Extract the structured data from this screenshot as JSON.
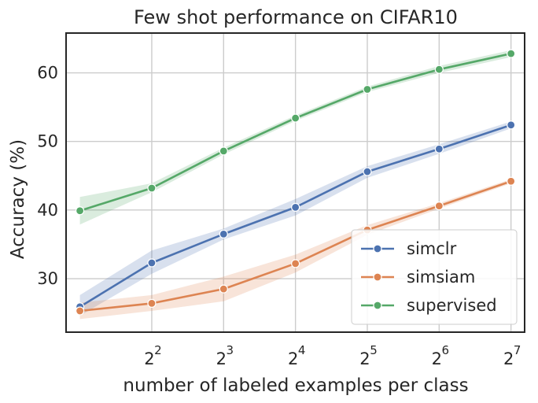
{
  "chart_data": {
    "type": "line",
    "title": "Few shot performance on CIFAR10",
    "xlabel": "number of labeled examples per class",
    "ylabel": "Accuracy (%)",
    "x_scale": "log2",
    "x": [
      2,
      4,
      8,
      16,
      32,
      64,
      128
    ],
    "xticks": [
      4,
      8,
      16,
      32,
      64,
      128
    ],
    "xtick_labels": [
      {
        "base": "2",
        "exp": "2"
      },
      {
        "base": "2",
        "exp": "3"
      },
      {
        "base": "2",
        "exp": "4"
      },
      {
        "base": "2",
        "exp": "5"
      },
      {
        "base": "2",
        "exp": "6"
      },
      {
        "base": "2",
        "exp": "7"
      }
    ],
    "xlim": [
      1.75,
      146
    ],
    "ylim": [
      22.2,
      65.8
    ],
    "yticks": [
      30,
      40,
      50,
      60
    ],
    "ytick_labels": [
      "30",
      "40",
      "50",
      "60"
    ],
    "grid": true,
    "legend_position": "bottom-right",
    "series": [
      {
        "name": "simclr",
        "color": "#4c72b0",
        "values": [
          25.9,
          32.3,
          36.5,
          40.4,
          45.6,
          48.9,
          52.4
        ],
        "lower": [
          24.6,
          30.7,
          35.7,
          39.2,
          44.7,
          48.2,
          51.9
        ],
        "upper": [
          27.6,
          34.1,
          37.3,
          41.6,
          46.4,
          49.6,
          52.9
        ]
      },
      {
        "name": "simsiam",
        "color": "#dd8452",
        "values": [
          25.3,
          26.4,
          28.5,
          32.2,
          37.1,
          40.6,
          44.2
        ],
        "lower": [
          24.1,
          25.3,
          26.7,
          30.9,
          36.4,
          40.2,
          43.9
        ],
        "upper": [
          26.5,
          27.6,
          30.3,
          33.5,
          37.8,
          41.0,
          44.5
        ]
      },
      {
        "name": "supervised",
        "color": "#55a868",
        "values": [
          39.9,
          43.2,
          48.6,
          53.4,
          57.6,
          60.5,
          62.8
        ],
        "lower": [
          37.9,
          42.6,
          48.1,
          53.0,
          57.2,
          60.0,
          62.3
        ],
        "upper": [
          41.9,
          43.9,
          49.1,
          53.8,
          58.0,
          61.0,
          63.3
        ]
      }
    ]
  }
}
